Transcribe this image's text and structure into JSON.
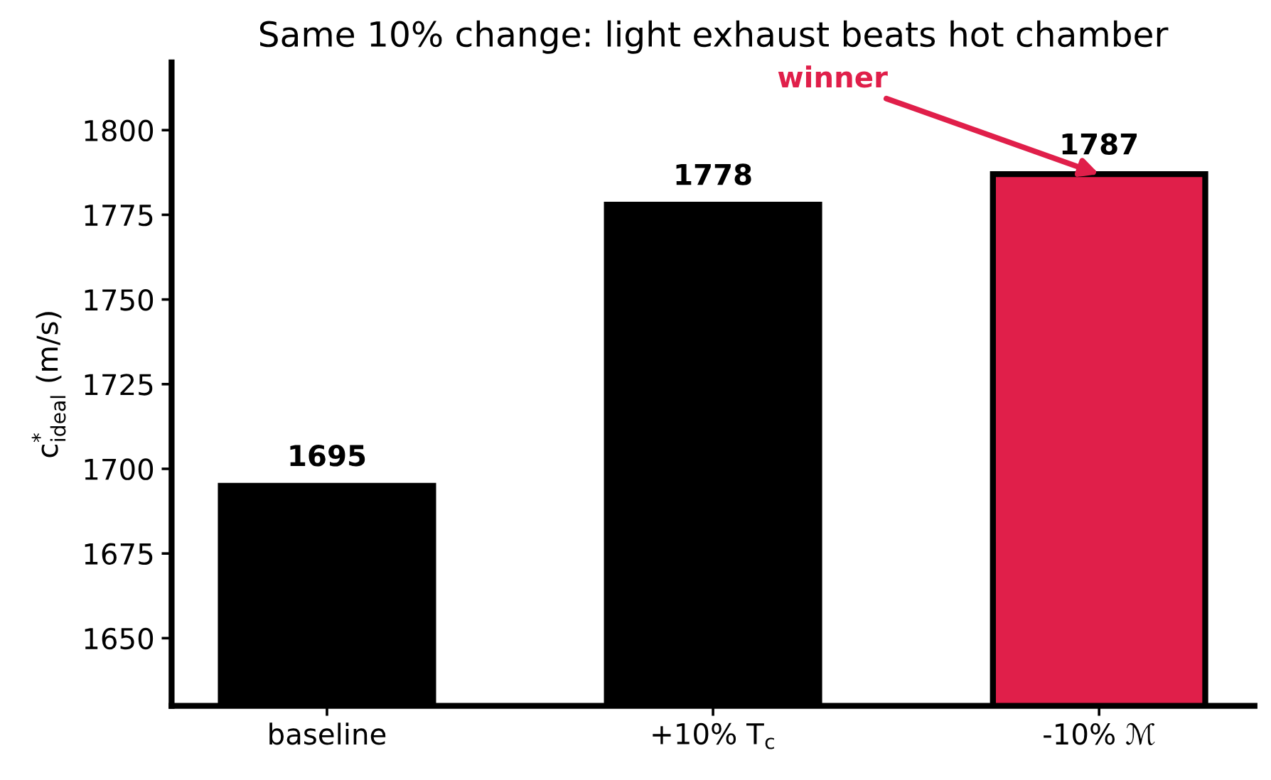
{
  "chart_data": {
    "type": "bar",
    "title": "Same 10% change: light exhaust beats hot chamber",
    "ylabel": "c$^{*}$$_{ideal}$ (m/s)",
    "categories": [
      "baseline",
      "+10% T$_{c}$",
      "-10% ℳ"
    ],
    "values": [
      1695,
      1778,
      1787
    ],
    "colors": [
      "#000000",
      "#000000",
      "#e01f4a"
    ],
    "ylim": [
      1630,
      1820
    ],
    "yticks": [
      1650,
      1675,
      1700,
      1725,
      1750,
      1775,
      1800
    ],
    "data_labels": true,
    "annotations": [
      {
        "text": "winner",
        "x": "-10% ℳ",
        "y": 1787
      }
    ]
  }
}
